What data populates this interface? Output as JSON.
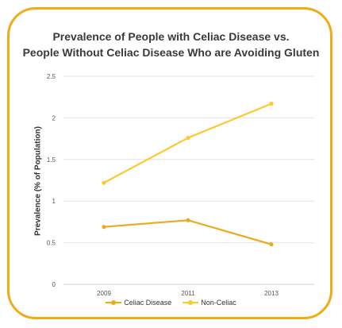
{
  "chart_data": {
    "type": "line",
    "title_lines": [
      "Prevalence of People with Celiac Disease vs.",
      "People Without Celiac Disease Who are Avoiding Gluten"
    ],
    "xlabel": "",
    "ylabel": "Prevalence (% of Population)",
    "categories": [
      "2009",
      "2011",
      "2013"
    ],
    "yticks": [
      "0",
      "0.5",
      "1",
      "1.5",
      "2",
      "2.5"
    ],
    "ylim": [
      0,
      2.5
    ],
    "grid": true,
    "legend_position": "bottom",
    "series": [
      {
        "name": "Celiac Disease",
        "values": [
          0.69,
          0.77,
          0.48
        ],
        "color": "#eda91a"
      },
      {
        "name": "Non-Celiac",
        "values": [
          1.22,
          1.76,
          2.17
        ],
        "color": "#ffc830"
      }
    ]
  },
  "frame_color": "#f0ac15"
}
